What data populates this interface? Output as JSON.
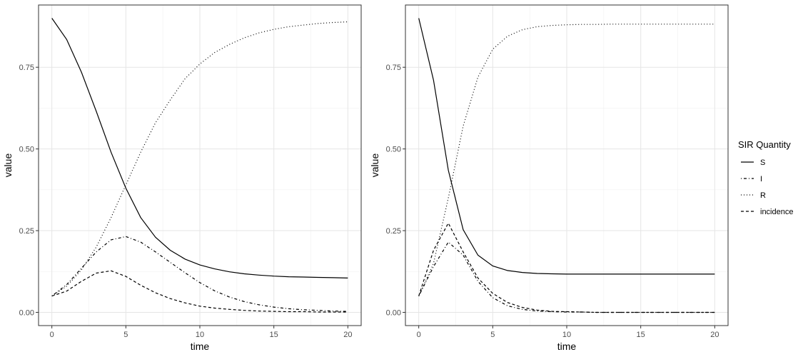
{
  "chart_data": [
    {
      "type": "line",
      "xlabel": "time",
      "ylabel": "value",
      "xlim": [
        0,
        20
      ],
      "ylim": [
        0,
        0.9
      ],
      "x_ticks": [
        0,
        5,
        10,
        15,
        20
      ],
      "y_ticks": [
        0,
        0.25,
        0.5,
        0.75
      ],
      "y_tick_labels": [
        "0.00",
        "0.25",
        "0.50",
        "0.75"
      ],
      "grid": true,
      "x": [
        0,
        1,
        2,
        3,
        4,
        5,
        6,
        7,
        8,
        9,
        10,
        11,
        12,
        13,
        14,
        15,
        16,
        17,
        18,
        19,
        20
      ],
      "series": [
        {
          "name": "S",
          "linetype": "solid",
          "values": [
            0.9,
            0.835,
            0.735,
            0.615,
            0.49,
            0.38,
            0.29,
            0.23,
            0.19,
            0.163,
            0.145,
            0.133,
            0.124,
            0.118,
            0.114,
            0.111,
            0.109,
            0.108,
            0.107,
            0.106,
            0.105
          ]
        },
        {
          "name": "I",
          "linetype": "dotdash",
          "values": [
            0.05,
            0.085,
            0.135,
            0.185,
            0.222,
            0.232,
            0.215,
            0.185,
            0.153,
            0.121,
            0.091,
            0.066,
            0.047,
            0.033,
            0.023,
            0.016,
            0.011,
            0.008,
            0.006,
            0.004,
            0.003
          ]
        },
        {
          "name": "R",
          "linetype": "dotted",
          "values": [
            0.05,
            0.08,
            0.13,
            0.2,
            0.29,
            0.39,
            0.49,
            0.58,
            0.65,
            0.715,
            0.76,
            0.795,
            0.82,
            0.84,
            0.855,
            0.866,
            0.874,
            0.879,
            0.884,
            0.887,
            0.889
          ]
        },
        {
          "name": "incidence",
          "linetype": "dashed",
          "values": [
            0.05,
            0.065,
            0.095,
            0.12,
            0.127,
            0.11,
            0.083,
            0.06,
            0.042,
            0.029,
            0.019,
            0.013,
            0.009,
            0.006,
            0.004,
            0.003,
            0.002,
            0.002,
            0.001,
            0.001,
            0.001
          ]
        }
      ]
    },
    {
      "type": "line",
      "xlabel": "time",
      "ylabel": "value",
      "xlim": [
        0,
        20
      ],
      "ylim": [
        0,
        0.9
      ],
      "x_ticks": [
        0,
        5,
        10,
        15,
        20
      ],
      "y_ticks": [
        0,
        0.25,
        0.5,
        0.75
      ],
      "y_tick_labels": [
        "0.00",
        "0.25",
        "0.50",
        "0.75"
      ],
      "grid": true,
      "x": [
        0,
        1,
        2,
        3,
        4,
        5,
        6,
        7,
        8,
        9,
        10,
        11,
        12,
        13,
        14,
        15,
        16,
        17,
        18,
        19,
        20
      ],
      "series": [
        {
          "name": "S",
          "linetype": "solid",
          "values": [
            0.9,
            0.71,
            0.435,
            0.253,
            0.175,
            0.142,
            0.128,
            0.122,
            0.119,
            0.118,
            0.117,
            0.117,
            0.117,
            0.117,
            0.117,
            0.117,
            0.117,
            0.117,
            0.117,
            0.117,
            0.117
          ]
        },
        {
          "name": "I",
          "linetype": "dotdash",
          "values": [
            0.05,
            0.14,
            0.215,
            0.175,
            0.095,
            0.045,
            0.02,
            0.009,
            0.004,
            0.002,
            0.001,
            0.001,
            0.0,
            0.0,
            0.0,
            0.0,
            0.0,
            0.0,
            0.0,
            0.0,
            0.0
          ]
        },
        {
          "name": "R",
          "linetype": "dotted",
          "values": [
            0.05,
            0.15,
            0.35,
            0.57,
            0.72,
            0.805,
            0.845,
            0.865,
            0.874,
            0.878,
            0.88,
            0.881,
            0.881,
            0.882,
            0.882,
            0.882,
            0.882,
            0.882,
            0.882,
            0.882,
            0.882
          ]
        },
        {
          "name": "incidence",
          "linetype": "dashed",
          "values": [
            0.05,
            0.19,
            0.273,
            0.185,
            0.105,
            0.058,
            0.03,
            0.015,
            0.007,
            0.003,
            0.002,
            0.001,
            0.0,
            0.0,
            0.0,
            0.0,
            0.0,
            0.0,
            0.0,
            0.0,
            0.0
          ]
        }
      ]
    }
  ],
  "legend": {
    "title": "SIR Quantity",
    "placement": "right",
    "items": [
      {
        "label": "S",
        "linetype": "solid"
      },
      {
        "label": "I",
        "linetype": "dotdash"
      },
      {
        "label": "R",
        "linetype": "dotted"
      },
      {
        "label": "incidence",
        "linetype": "dashed"
      }
    ]
  }
}
